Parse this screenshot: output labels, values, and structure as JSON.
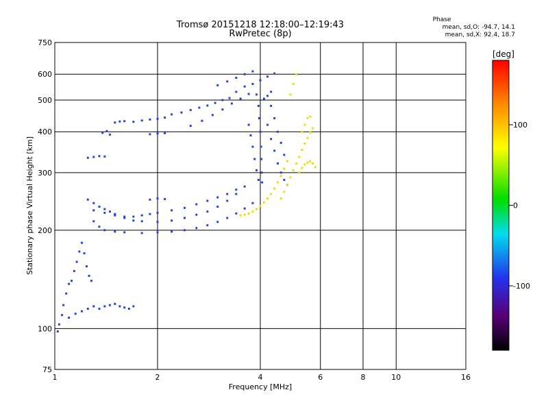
{
  "chart_data": {
    "type": "scatter",
    "title": "Tromsø 20151218 12:18:00–12:19:43",
    "subtitle": "RwPretec (8p)",
    "xlabel": "Frequency [MHz]",
    "ylabel": "Stationary phase Virtual Height [km]",
    "x_scale": "log",
    "y_scale": "log",
    "xlim": [
      1,
      16
    ],
    "ylim": [
      75,
      750
    ],
    "x_ticks": [
      1,
      2,
      4,
      6,
      8,
      10,
      16
    ],
    "y_ticks": [
      75,
      100,
      200,
      300,
      400,
      500,
      600,
      750
    ],
    "grid": true,
    "colorbar": {
      "label": "[deg]",
      "range": [
        -180,
        180
      ],
      "ticks": [
        -100,
        0,
        100
      ]
    },
    "phase_legend": {
      "title": "Phase",
      "o_line": "mean, sd,O: -94.7, 14.1",
      "x_line": "mean, sd,X: 92.4, 18.7"
    },
    "series": [
      {
        "name": "O",
        "phase": -100,
        "color": "#2244dd",
        "points": [
          [
            1.02,
            98
          ],
          [
            1.03,
            103
          ],
          [
            1.05,
            110
          ],
          [
            1.06,
            118
          ],
          [
            1.08,
            128
          ],
          [
            1.1,
            137
          ],
          [
            1.12,
            140
          ],
          [
            1.14,
            150
          ],
          [
            1.16,
            160
          ],
          [
            1.18,
            172
          ],
          [
            1.2,
            183
          ],
          [
            1.22,
            170
          ],
          [
            1.24,
            155
          ],
          [
            1.26,
            145
          ],
          [
            1.28,
            140
          ],
          [
            1.1,
            108
          ],
          [
            1.15,
            111
          ],
          [
            1.2,
            113
          ],
          [
            1.25,
            115
          ],
          [
            1.3,
            117
          ],
          [
            1.35,
            115
          ],
          [
            1.4,
            117
          ],
          [
            1.45,
            118
          ],
          [
            1.5,
            119
          ],
          [
            1.55,
            117
          ],
          [
            1.6,
            116
          ],
          [
            1.65,
            115
          ],
          [
            1.7,
            117
          ],
          [
            1.25,
            333
          ],
          [
            1.3,
            335
          ],
          [
            1.35,
            337
          ],
          [
            1.4,
            336
          ],
          [
            1.38,
            397
          ],
          [
            1.42,
            402
          ],
          [
            1.45,
            392
          ],
          [
            1.5,
            427
          ],
          [
            1.55,
            430
          ],
          [
            1.6,
            431
          ],
          [
            1.7,
            429
          ],
          [
            1.8,
            433
          ],
          [
            1.9,
            436
          ],
          [
            2.0,
            438
          ],
          [
            2.1,
            442
          ],
          [
            1.9,
            393
          ],
          [
            2.0,
            395
          ],
          [
            2.1,
            396
          ],
          [
            2.2,
            452
          ],
          [
            2.35,
            458
          ],
          [
            2.5,
            466
          ],
          [
            2.65,
            474
          ],
          [
            2.8,
            481
          ],
          [
            2.95,
            490
          ],
          [
            3.1,
            500
          ],
          [
            3.25,
            507
          ],
          [
            2.5,
            417
          ],
          [
            2.7,
            432
          ],
          [
            2.9,
            450
          ],
          [
            3.1,
            468
          ],
          [
            3.3,
            488
          ],
          [
            3.5,
            505
          ],
          [
            3.7,
            522
          ],
          [
            3.0,
            555
          ],
          [
            3.2,
            570
          ],
          [
            3.4,
            585
          ],
          [
            3.6,
            600
          ],
          [
            3.8,
            612
          ],
          [
            3.4,
            530
          ],
          [
            3.6,
            550
          ],
          [
            3.8,
            560
          ],
          [
            4.0,
            575
          ],
          [
            4.2,
            590
          ],
          [
            4.4,
            603
          ],
          [
            1.25,
            248
          ],
          [
            1.3,
            242
          ],
          [
            1.35,
            236
          ],
          [
            1.4,
            232
          ],
          [
            1.45,
            228
          ],
          [
            1.5,
            224
          ],
          [
            1.6,
            220
          ],
          [
            1.7,
            220
          ],
          [
            1.8,
            222
          ],
          [
            1.9,
            224
          ],
          [
            2.0,
            226
          ],
          [
            2.2,
            230
          ],
          [
            2.4,
            234
          ],
          [
            2.6,
            240
          ],
          [
            2.8,
            246
          ],
          [
            3.0,
            252
          ],
          [
            3.2,
            258
          ],
          [
            3.4,
            266
          ],
          [
            1.3,
            230
          ],
          [
            1.4,
            226
          ],
          [
            1.5,
            222
          ],
          [
            1.6,
            218
          ],
          [
            1.7,
            214
          ],
          [
            1.8,
            213
          ],
          [
            2.0,
            212
          ],
          [
            2.2,
            214
          ],
          [
            2.4,
            218
          ],
          [
            2.6,
            223
          ],
          [
            2.8,
            228
          ],
          [
            3.0,
            236
          ],
          [
            3.2,
            246
          ],
          [
            3.4,
            258
          ],
          [
            3.6,
            272
          ],
          [
            1.3,
            213
          ],
          [
            1.35,
            205
          ],
          [
            1.4,
            200
          ],
          [
            1.5,
            198
          ],
          [
            1.6,
            197
          ],
          [
            1.8,
            196
          ],
          [
            2.0,
            197
          ],
          [
            2.2,
            198
          ],
          [
            2.4,
            200
          ],
          [
            2.6,
            203
          ],
          [
            2.8,
            207
          ],
          [
            3.0,
            212
          ],
          [
            3.2,
            218
          ],
          [
            3.4,
            225
          ],
          [
            3.6,
            233
          ],
          [
            3.8,
            242
          ],
          [
            1.9,
            248
          ],
          [
            2.0,
            250
          ],
          [
            2.1,
            249
          ],
          [
            3.9,
            520
          ],
          [
            3.95,
            480
          ],
          [
            3.97,
            440
          ],
          [
            4.0,
            400
          ],
          [
            4.02,
            360
          ],
          [
            4.03,
            330
          ],
          [
            4.04,
            300
          ],
          [
            4.05,
            280
          ],
          [
            3.7,
            420
          ],
          [
            3.75,
            390
          ],
          [
            3.8,
            360
          ],
          [
            3.85,
            330
          ],
          [
            3.9,
            305
          ],
          [
            3.95,
            285
          ],
          [
            4.2,
            420
          ],
          [
            4.3,
            380
          ],
          [
            4.4,
            350
          ],
          [
            4.5,
            320
          ],
          [
            4.6,
            300
          ],
          [
            4.7,
            285
          ],
          [
            4.8,
            275
          ],
          [
            4.3,
            480
          ],
          [
            4.4,
            440
          ],
          [
            4.5,
            400
          ],
          [
            4.6,
            370
          ],
          [
            4.7,
            340
          ],
          [
            4.1,
            505
          ],
          [
            4.2,
            515
          ],
          [
            4.3,
            530
          ]
        ]
      },
      {
        "name": "X",
        "phase": 100,
        "color": "#e8e000",
        "points": [
          [
            3.5,
            222
          ],
          [
            3.6,
            223
          ],
          [
            3.7,
            225
          ],
          [
            3.8,
            228
          ],
          [
            3.9,
            232
          ],
          [
            4.0,
            237
          ],
          [
            4.1,
            243
          ],
          [
            4.2,
            250
          ],
          [
            4.3,
            258
          ],
          [
            4.4,
            268
          ],
          [
            4.5,
            280
          ],
          [
            4.6,
            293
          ],
          [
            4.7,
            308
          ],
          [
            4.8,
            325
          ],
          [
            4.6,
            250
          ],
          [
            4.7,
            262
          ],
          [
            4.8,
            275
          ],
          [
            4.9,
            290
          ],
          [
            5.0,
            305
          ],
          [
            5.1,
            320
          ],
          [
            5.2,
            335
          ],
          [
            5.3,
            352
          ],
          [
            5.4,
            368
          ],
          [
            5.5,
            383
          ],
          [
            5.6,
            398
          ],
          [
            5.7,
            410
          ],
          [
            5.2,
            300
          ],
          [
            5.3,
            310
          ],
          [
            5.4,
            318
          ],
          [
            5.5,
            322
          ],
          [
            5.6,
            325
          ],
          [
            5.7,
            320
          ],
          [
            5.8,
            312
          ],
          [
            5.3,
            400
          ],
          [
            5.4,
            420
          ],
          [
            5.5,
            440
          ],
          [
            5.6,
            445
          ],
          [
            4.9,
            520
          ],
          [
            5.0,
            560
          ],
          [
            5.1,
            600
          ]
        ]
      }
    ]
  }
}
